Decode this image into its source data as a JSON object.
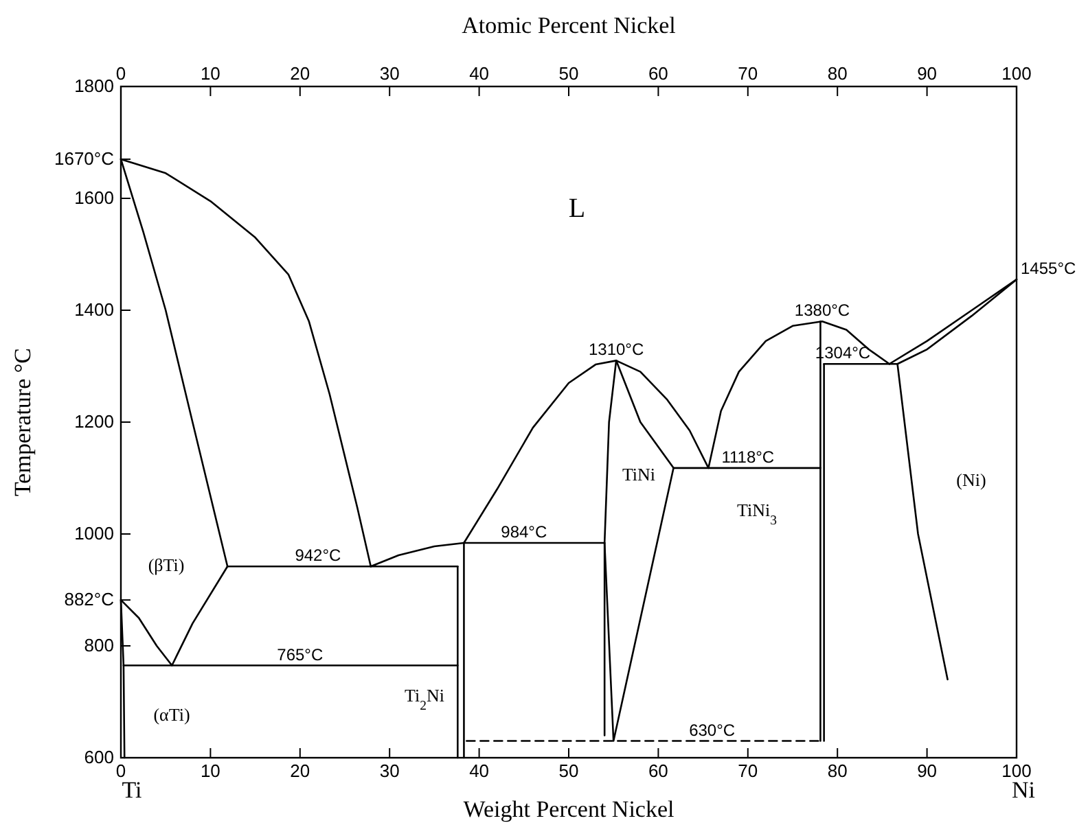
{
  "chart_data": {
    "type": "line",
    "xlabel": "Weight Percent Nickel",
    "x2label": "Atomic Percent Nickel",
    "ylabel": "Temperature °C",
    "xlim": [
      0,
      100
    ],
    "xticks": [
      0,
      10,
      20,
      30,
      40,
      50,
      60,
      70,
      80,
      90,
      100
    ],
    "x2lim": [
      0,
      100
    ],
    "x2ticks": [
      0,
      10,
      20,
      30,
      40,
      50,
      60,
      70,
      80,
      90,
      100
    ],
    "ylim": [
      600,
      1800
    ],
    "yticks": [
      600,
      800,
      {
        "value": 882,
        "label": "882°C"
      },
      1000,
      1200,
      1400,
      1600,
      {
        "value": 1670,
        "label": "1670°C"
      },
      1800
    ],
    "grid": false,
    "marker": "none",
    "series": [
      {
        "color": "#000000",
        "x": [
          0,
          5,
          10,
          15,
          18.7,
          21,
          23.3,
          26.4,
          27.9
        ],
        "values": [
          1670,
          1645,
          1595,
          1530,
          1464,
          1380,
          1250,
          1047,
          942
        ]
      },
      {
        "color": "#000000",
        "x": [
          0,
          2.5,
          5,
          8,
          11.9
        ],
        "values": [
          1670,
          1540,
          1400,
          1200,
          942
        ]
      },
      {
        "color": "#000000",
        "x": [
          11.9,
          37.6
        ],
        "values": [
          942,
          942
        ]
      },
      {
        "color": "#000000",
        "x": [
          5.7,
          8,
          11.9
        ],
        "values": [
          765,
          840,
          942
        ]
      },
      {
        "color": "#000000",
        "x": [
          0,
          2,
          4,
          5.7
        ],
        "values": [
          882,
          850,
          800,
          765
        ]
      },
      {
        "color": "#000000",
        "x": [
          0,
          0.3,
          0.4
        ],
        "values": [
          882,
          765,
          600
        ]
      },
      {
        "color": "#000000",
        "x": [
          0.3,
          37.6
        ],
        "values": [
          765,
          765
        ]
      },
      {
        "color": "#000000",
        "x": [
          37.6,
          37.6
        ],
        "values": [
          600,
          942
        ]
      },
      {
        "color": "#000000",
        "x": [
          38.3,
          38.3
        ],
        "values": [
          600,
          984
        ]
      },
      {
        "color": "#000000",
        "x": [
          27.9,
          31,
          35,
          38.3,
          54
        ],
        "values": [
          942,
          962,
          978,
          984,
          984
        ]
      },
      {
        "color": "#000000",
        "x": [
          38.3,
          42,
          46,
          50,
          53,
          55.3,
          58,
          61,
          63.5,
          65.6
        ],
        "values": [
          984,
          1080,
          1190,
          1270,
          1303,
          1310,
          1290,
          1240,
          1185,
          1118
        ]
      },
      {
        "color": "#000000",
        "x": [
          55.3,
          54.5,
          54,
          54
        ],
        "values": [
          1310,
          1200,
          984,
          640
        ]
      },
      {
        "color": "#000000",
        "x": [
          54,
          55,
          61.7
        ],
        "values": [
          984,
          630,
          1118
        ]
      },
      {
        "color": "#000000",
        "x": [
          55.3,
          58,
          61.7
        ],
        "values": [
          1310,
          1200,
          1118
        ]
      },
      {
        "color": "#000000",
        "x": [
          61.7,
          78.1
        ],
        "values": [
          1118,
          1118
        ]
      },
      {
        "color": "#000000",
        "x": [
          65.6,
          67,
          69,
          72,
          75,
          78.3,
          81,
          83.5,
          85.8
        ],
        "values": [
          1118,
          1220,
          1290,
          1345,
          1372,
          1380,
          1365,
          1330,
          1304
        ]
      },
      {
        "color": "#000000",
        "x": [
          78.1,
          78.1
        ],
        "values": [
          630,
          1380
        ]
      },
      {
        "color": "#000000",
        "x": [
          78.5,
          78.5
        ],
        "values": [
          630,
          1304
        ]
      },
      {
        "color": "#000000",
        "x": [
          78.5,
          86.7
        ],
        "values": [
          1304,
          1304
        ]
      },
      {
        "color": "#000000",
        "x": [
          85.8,
          90,
          95,
          100
        ],
        "values": [
          1304,
          1345,
          1400,
          1455
        ]
      },
      {
        "color": "#000000",
        "x": [
          86.7,
          90,
          95,
          100
        ],
        "values": [
          1304,
          1330,
          1390,
          1455
        ]
      },
      {
        "color": "#000000",
        "x": [
          86.7,
          89,
          92.3
        ],
        "values": [
          1304,
          1000,
          740
        ]
      },
      {
        "color": "#000000",
        "x": [
          38.6,
          78.1
        ],
        "values": [
          630,
          630
        ],
        "line_style": "dashed"
      }
    ],
    "annotations": [
      "L",
      "(βTi)",
      "TiNi",
      "(Ni)",
      "TiNi$_{3}$",
      "Ti$_{2}$Ni",
      "(αTi)",
      "Ti",
      "Ni",
      {
        "text": "1455°C",
        "x": 100,
        "y": 1455
      },
      {
        "text": "1310°C",
        "x": 55.3,
        "y": 1310
      },
      {
        "text": "1380°C",
        "x": 78.3,
        "y": 1380
      },
      {
        "text": "1304°C",
        "x": 80.6,
        "y": 1304
      },
      {
        "text": "1118°C",
        "x": 70,
        "y": 1118
      },
      {
        "text": "984°C",
        "x": 45,
        "y": 984
      },
      {
        "text": "942°C",
        "x": 22,
        "y": 942
      },
      {
        "text": "765°C",
        "x": 20,
        "y": 765
      },
      {
        "text": "630°C",
        "x": 66,
        "y": 630
      }
    ]
  }
}
